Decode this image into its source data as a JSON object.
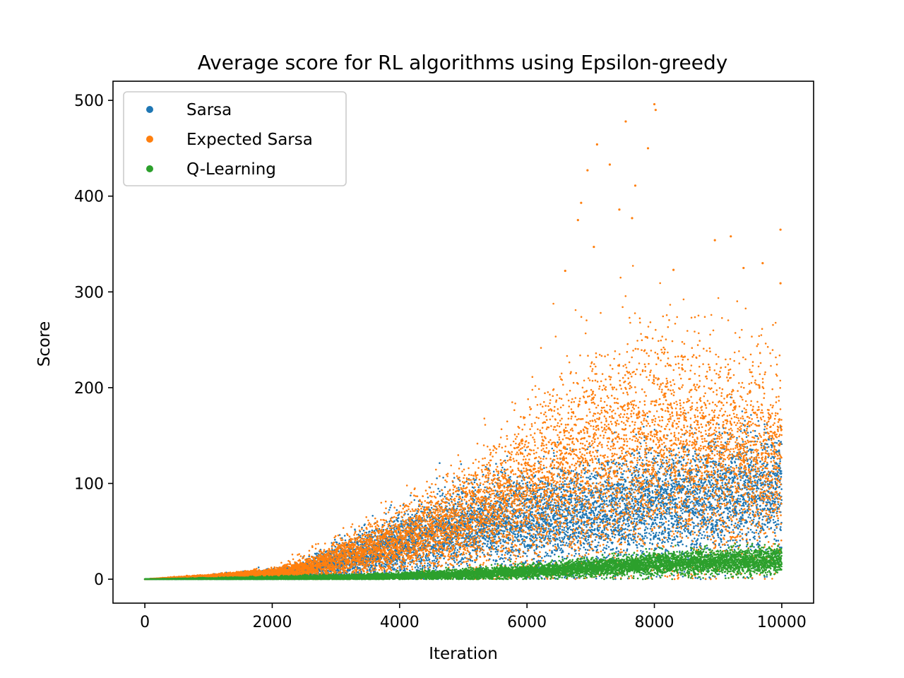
{
  "chart_data": {
    "type": "scatter",
    "title": "Average score for RL algorithms using Epsilon-greedy",
    "xlabel": "Iteration",
    "ylabel": "Score",
    "xlim": [
      -500,
      10500
    ],
    "ylim": [
      -25,
      520
    ],
    "xticks": [
      0,
      2000,
      4000,
      6000,
      8000,
      10000
    ],
    "yticks": [
      0,
      100,
      200,
      300,
      400,
      500
    ],
    "xtick_labels": [
      "0",
      "2000",
      "4000",
      "6000",
      "8000",
      "10000"
    ],
    "ytick_labels": [
      "0",
      "100",
      "200",
      "300",
      "400",
      "500"
    ],
    "legend_position": "upper-left",
    "n_points_per_series": 10000,
    "series": [
      {
        "name": "Sarsa",
        "color": "#1f77b4",
        "trend_x": [
          0,
          1000,
          2000,
          2500,
          3000,
          3500,
          4000,
          4500,
          5000,
          5500,
          6000,
          6500,
          7000,
          7500,
          8000,
          8500,
          9000,
          9500,
          10000
        ],
        "trend_y": [
          0,
          2,
          5,
          9,
          18,
          27,
          36,
          45,
          53,
          58,
          60,
          65,
          68,
          72,
          78,
          82,
          86,
          90,
          95
        ],
        "spread": [
          0,
          1,
          3,
          5,
          10,
          14,
          18,
          22,
          25,
          27,
          28,
          29,
          30,
          30,
          32,
          33,
          34,
          35,
          36
        ]
      },
      {
        "name": "Expected Sarsa",
        "color": "#ff7f0e",
        "trend_x": [
          0,
          1000,
          2000,
          2500,
          3000,
          3500,
          4000,
          4500,
          5000,
          5500,
          6000,
          6500,
          7000,
          7500,
          8000,
          8500,
          9000,
          9500,
          10000
        ],
        "trend_y": [
          0,
          3,
          6,
          11,
          20,
          30,
          40,
          52,
          62,
          75,
          90,
          105,
          120,
          130,
          135,
          135,
          130,
          128,
          125
        ],
        "spread": [
          0,
          1,
          3,
          6,
          10,
          14,
          18,
          24,
          30,
          38,
          46,
          55,
          62,
          66,
          68,
          66,
          62,
          58,
          55
        ]
      },
      {
        "name": "Q-Learning",
        "color": "#2ca02c",
        "trend_x": [
          0,
          2000,
          4000,
          5000,
          6000,
          7000,
          8000,
          9000,
          10000
        ],
        "trend_y": [
          0,
          1,
          3,
          5,
          8,
          12,
          16,
          18,
          20
        ],
        "spread": [
          0,
          1,
          2,
          3,
          4,
          5,
          6,
          7,
          8
        ]
      }
    ],
    "outliers": {
      "Expected Sarsa": [
        {
          "x": 8000,
          "y": 496
        },
        {
          "x": 8020,
          "y": 490
        },
        {
          "x": 7550,
          "y": 478
        },
        {
          "x": 7900,
          "y": 450
        },
        {
          "x": 7100,
          "y": 454
        },
        {
          "x": 7300,
          "y": 433
        },
        {
          "x": 6950,
          "y": 427
        },
        {
          "x": 7700,
          "y": 411
        },
        {
          "x": 6850,
          "y": 393
        },
        {
          "x": 7450,
          "y": 386
        },
        {
          "x": 6800,
          "y": 375
        },
        {
          "x": 7650,
          "y": 377
        },
        {
          "x": 9980,
          "y": 365
        },
        {
          "x": 9200,
          "y": 358
        },
        {
          "x": 7050,
          "y": 347
        },
        {
          "x": 8950,
          "y": 354
        },
        {
          "x": 9700,
          "y": 330
        },
        {
          "x": 8300,
          "y": 323
        },
        {
          "x": 9400,
          "y": 325
        },
        {
          "x": 6600,
          "y": 322
        },
        {
          "x": 9980,
          "y": 309
        }
      ]
    }
  }
}
